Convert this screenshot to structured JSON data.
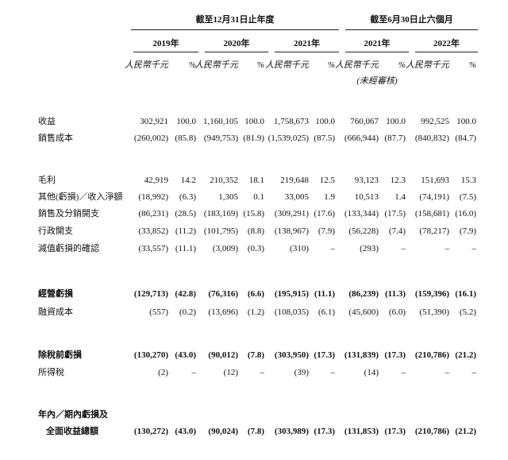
{
  "header": {
    "group_titles": [
      "截至12月31日止年度",
      "截至6月30日止六個月"
    ],
    "years": [
      "2019年",
      "2020年",
      "2021年",
      "2021年",
      "2022年"
    ],
    "unit_amount": "人民幣千元",
    "unit_percent": "%",
    "unaudited": "(未經審核)"
  },
  "table": {
    "rows": [
      {
        "label": [
          "收益"
        ],
        "bold": false,
        "cells": [
          "302,921",
          "100.0",
          "1,160,105",
          "100.0",
          "1,758,673",
          "100.0",
          "760,067",
          "100.0",
          "992,525",
          "100.0"
        ]
      },
      {
        "label": [
          "銷售成本"
        ],
        "bold": false,
        "cells": [
          "(260,002)",
          "(85.8)",
          "(949,753)",
          "(81.9)",
          "(1,539,025)",
          "(87.5)",
          "(666,944)",
          "(87.7)",
          "(840,832)",
          "(84.7)"
        ]
      },
      {
        "label": [
          "毛利"
        ],
        "bold": false,
        "cells": [
          "42,919",
          "14.2",
          "210,352",
          "18.1",
          "219,648",
          "12.5",
          "93,123",
          "12.3",
          "151,693",
          "15.3"
        ]
      },
      {
        "label": [
          "其他(虧損)／收入淨額"
        ],
        "bold": false,
        "cells": [
          "(18,992)",
          "(6.3)",
          "1,305",
          "0.1",
          "33,005",
          "1.9",
          "10,513",
          "1.4",
          "(74,191)",
          "(7.5)"
        ]
      },
      {
        "label": [
          "銷售及分銷開支"
        ],
        "bold": false,
        "cells": [
          "(86,231)",
          "(28.5)",
          "(183,169)",
          "(15.8)",
          "(309,291)",
          "(17.6)",
          "(133,344)",
          "(17.5)",
          "(158,681)",
          "(16.0)"
        ]
      },
      {
        "label": [
          "行政開支"
        ],
        "bold": false,
        "cells": [
          "(33,852)",
          "(11.2)",
          "(101,795)",
          "(8.8)",
          "(138,967)",
          "(7.9)",
          "(56,228)",
          "(7.4)",
          "(78,217)",
          "(7.9)"
        ]
      },
      {
        "label": [
          "減值虧損的確認"
        ],
        "bold": false,
        "cells": [
          "(33,557)",
          "(11.1)",
          "(3,009)",
          "(0.3)",
          "(310)",
          "–",
          "(293)",
          "–",
          "–",
          "–"
        ]
      },
      {
        "label": [
          "經營虧損"
        ],
        "bold": true,
        "cells": [
          "(129,713)",
          "(42.8)",
          "(76,316)",
          "(6.6)",
          "(195,915)",
          "(11.1)",
          "(86,239)",
          "(11.3)",
          "(159,396)",
          "(16.1)"
        ]
      },
      {
        "label": [
          "融資成本"
        ],
        "bold": false,
        "cells": [
          "(557)",
          "(0.2)",
          "(13,696)",
          "(1.2)",
          "(108,035)",
          "(6.1)",
          "(45,600)",
          "(6.0)",
          "(51,390)",
          "(5.2)"
        ]
      },
      {
        "label": [
          "除稅前虧損"
        ],
        "bold": true,
        "cells": [
          "(130,270)",
          "(43.0)",
          "(90,012)",
          "(7.8)",
          "(303,950)",
          "(17.3)",
          "(131,839)",
          "(17.3)",
          "(210,786)",
          "(21.2)"
        ]
      },
      {
        "label": [
          "所得稅"
        ],
        "bold": false,
        "cells": [
          "(2)",
          "–",
          "(12)",
          "–",
          "(39)",
          "–",
          "(14)",
          "–",
          "–",
          "–"
        ]
      },
      {
        "label": [
          "年內／期內虧損及",
          "全面收益總額"
        ],
        "bold": true,
        "cells": [
          "(130,272)",
          "(43.0)",
          "(90,024)",
          "(7.8)",
          "(303,989)",
          "(17.3)",
          "(131,853)",
          "(17.3)",
          "(210,786)",
          "(21.2)"
        ]
      }
    ]
  }
}
